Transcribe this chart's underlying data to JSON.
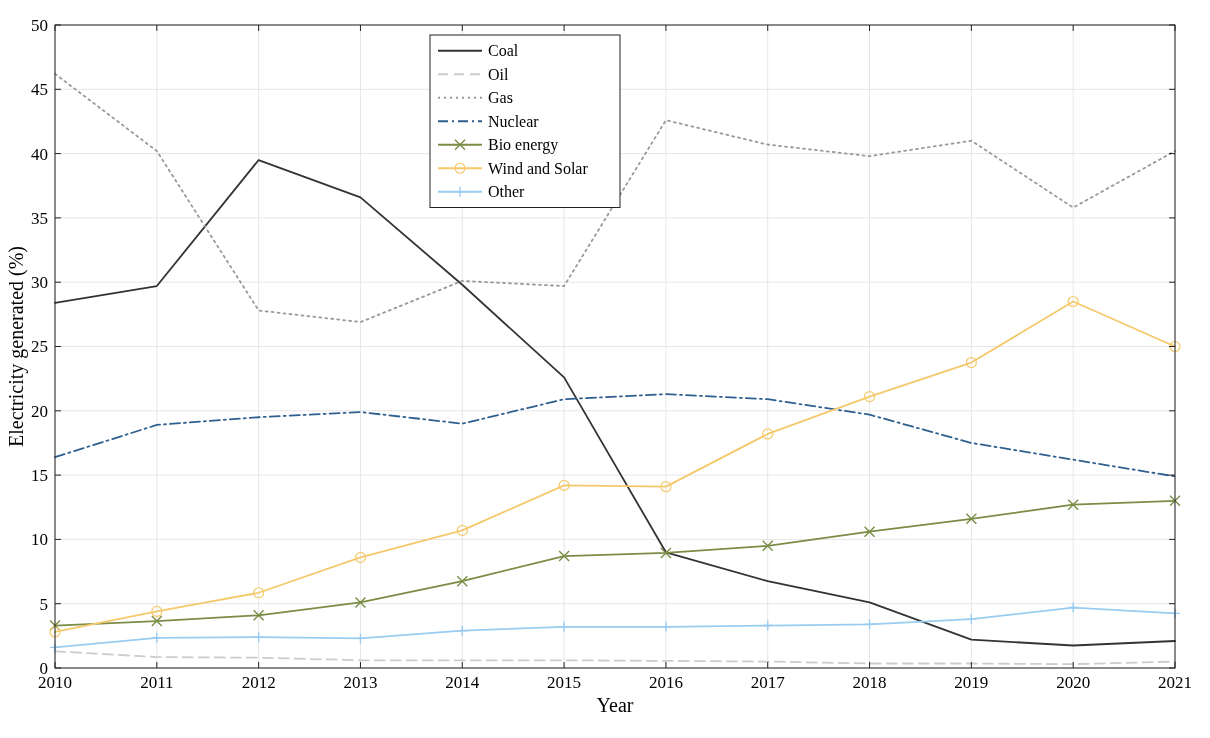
{
  "chart_data": {
    "type": "line",
    "xlabel": "Year",
    "ylabel": "Electricity generated (%)",
    "x": [
      2010,
      2011,
      2012,
      2013,
      2014,
      2015,
      2016,
      2017,
      2018,
      2019,
      2020,
      2021
    ],
    "xlim": [
      2010,
      2021
    ],
    "xticks": [
      2010,
      2011,
      2012,
      2013,
      2014,
      2015,
      2016,
      2017,
      2018,
      2019,
      2020,
      2021
    ],
    "ylim": [
      0,
      50
    ],
    "yticks": [
      0,
      5,
      10,
      15,
      20,
      25,
      30,
      35,
      40,
      45,
      50
    ],
    "grid": true,
    "legend": "top",
    "series": [
      {
        "name": "Coal",
        "color": "#333333",
        "line_style": "solid",
        "marker": "none",
        "values": [
          28.4,
          29.7,
          39.5,
          36.6,
          29.8,
          22.6,
          9.0,
          6.75,
          5.1,
          2.2,
          1.75,
          2.1
        ]
      },
      {
        "name": "Oil",
        "color": "#cccccc",
        "line_style": "dashed",
        "marker": "none",
        "values": [
          1.3,
          0.85,
          0.8,
          0.6,
          0.6,
          0.6,
          0.55,
          0.5,
          0.35,
          0.35,
          0.3,
          0.5
        ]
      },
      {
        "name": "Gas",
        "color": "#999999",
        "line_style": "dotted",
        "marker": "none",
        "values": [
          46.2,
          40.2,
          27.8,
          26.9,
          30.1,
          29.7,
          42.6,
          40.7,
          39.8,
          41.0,
          35.8,
          40.2
        ]
      },
      {
        "name": "Nuclear",
        "color": "#2f5f8f",
        "line_style": "dashdot",
        "marker": "none",
        "values": [
          16.4,
          18.9,
          19.5,
          19.9,
          19.0,
          20.9,
          21.3,
          20.9,
          19.7,
          17.5,
          16.2,
          14.9
        ]
      },
      {
        "name": "Bio energy",
        "color": "#7a8c45",
        "line_style": "solid",
        "marker": "cross",
        "values": [
          3.3,
          3.65,
          4.1,
          5.1,
          6.75,
          8.7,
          8.95,
          9.5,
          10.6,
          11.6,
          12.7,
          13.0
        ]
      },
      {
        "name": "Wind and Solar",
        "color": "#f5c96b",
        "line_style": "solid",
        "marker": "circle",
        "values": [
          2.8,
          4.4,
          5.85,
          8.6,
          10.7,
          14.2,
          14.1,
          18.2,
          21.1,
          23.75,
          28.5,
          25.0
        ]
      },
      {
        "name": "Other",
        "color": "#99ccf0",
        "line_style": "solid",
        "marker": "plus",
        "values": [
          1.6,
          2.35,
          2.4,
          2.3,
          2.9,
          3.2,
          3.2,
          3.3,
          3.4,
          3.8,
          4.7,
          4.25
        ]
      }
    ]
  }
}
